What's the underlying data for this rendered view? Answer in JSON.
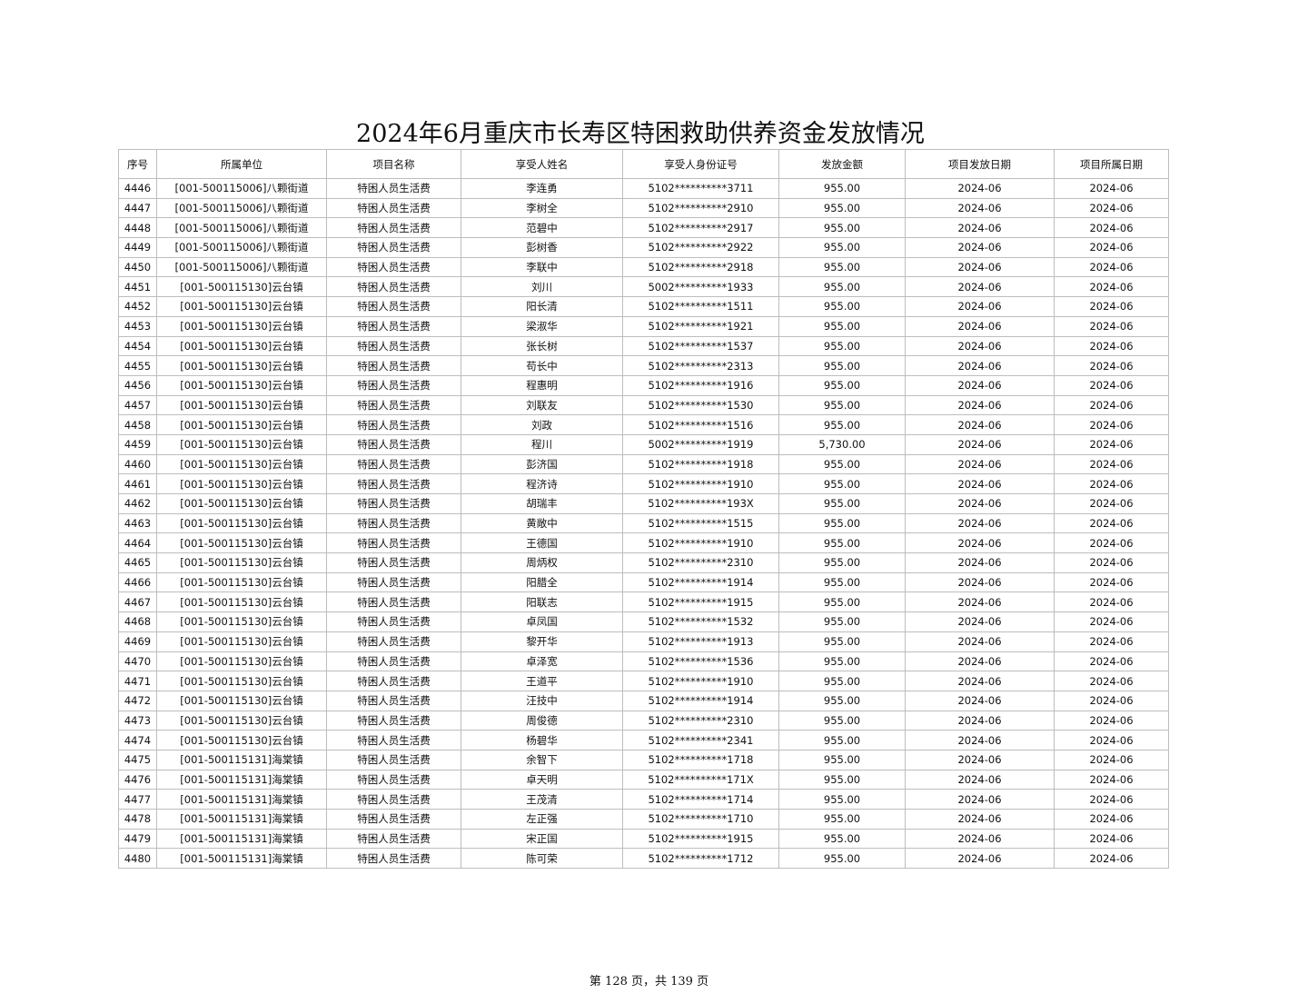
{
  "title": "2024年6月重庆市长寿区特困救助供养资金发放情况",
  "columns": [
    "序号",
    "所属单位",
    "项目名称",
    "享受人姓名",
    "享受人身份证号",
    "发放金额",
    "项目发放日期",
    "项目所属日期"
  ],
  "rows": [
    [
      "4446",
      "[001-500115006]八颗街道",
      "特困人员生活费",
      "李连勇",
      "5102**********3711",
      "955.00",
      "2024-06",
      "2024-06"
    ],
    [
      "4447",
      "[001-500115006]八颗街道",
      "特困人员生活费",
      "李树全",
      "5102**********2910",
      "955.00",
      "2024-06",
      "2024-06"
    ],
    [
      "4448",
      "[001-500115006]八颗街道",
      "特困人员生活费",
      "范碧中",
      "5102**********2917",
      "955.00",
      "2024-06",
      "2024-06"
    ],
    [
      "4449",
      "[001-500115006]八颗街道",
      "特困人员生活费",
      "彭树香",
      "5102**********2922",
      "955.00",
      "2024-06",
      "2024-06"
    ],
    [
      "4450",
      "[001-500115006]八颗街道",
      "特困人员生活费",
      "李联中",
      "5102**********2918",
      "955.00",
      "2024-06",
      "2024-06"
    ],
    [
      "4451",
      "[001-500115130]云台镇",
      "特困人员生活费",
      "刘川",
      "5002**********1933",
      "955.00",
      "2024-06",
      "2024-06"
    ],
    [
      "4452",
      "[001-500115130]云台镇",
      "特困人员生活费",
      "阳长清",
      "5102**********1511",
      "955.00",
      "2024-06",
      "2024-06"
    ],
    [
      "4453",
      "[001-500115130]云台镇",
      "特困人员生活费",
      "梁淑华",
      "5102**********1921",
      "955.00",
      "2024-06",
      "2024-06"
    ],
    [
      "4454",
      "[001-500115130]云台镇",
      "特困人员生活费",
      "张长树",
      "5102**********1537",
      "955.00",
      "2024-06",
      "2024-06"
    ],
    [
      "4455",
      "[001-500115130]云台镇",
      "特困人员生活费",
      "苟长中",
      "5102**********2313",
      "955.00",
      "2024-06",
      "2024-06"
    ],
    [
      "4456",
      "[001-500115130]云台镇",
      "特困人员生活费",
      "程惠明",
      "5102**********1916",
      "955.00",
      "2024-06",
      "2024-06"
    ],
    [
      "4457",
      "[001-500115130]云台镇",
      "特困人员生活费",
      "刘联友",
      "5102**********1530",
      "955.00",
      "2024-06",
      "2024-06"
    ],
    [
      "4458",
      "[001-500115130]云台镇",
      "特困人员生活费",
      "刘政",
      "5102**********1516",
      "955.00",
      "2024-06",
      "2024-06"
    ],
    [
      "4459",
      "[001-500115130]云台镇",
      "特困人员生活费",
      "程川",
      "5002**********1919",
      "5,730.00",
      "2024-06",
      "2024-06"
    ],
    [
      "4460",
      "[001-500115130]云台镇",
      "特困人员生活费",
      "彭济国",
      "5102**********1918",
      "955.00",
      "2024-06",
      "2024-06"
    ],
    [
      "4461",
      "[001-500115130]云台镇",
      "特困人员生活费",
      "程济诗",
      "5102**********1910",
      "955.00",
      "2024-06",
      "2024-06"
    ],
    [
      "4462",
      "[001-500115130]云台镇",
      "特困人员生活费",
      "胡瑞丰",
      "5102**********193X",
      "955.00",
      "2024-06",
      "2024-06"
    ],
    [
      "4463",
      "[001-500115130]云台镇",
      "特困人员生活费",
      "黄敞中",
      "5102**********1515",
      "955.00",
      "2024-06",
      "2024-06"
    ],
    [
      "4464",
      "[001-500115130]云台镇",
      "特困人员生活费",
      "王德国",
      "5102**********1910",
      "955.00",
      "2024-06",
      "2024-06"
    ],
    [
      "4465",
      "[001-500115130]云台镇",
      "特困人员生活费",
      "周炳权",
      "5102**********2310",
      "955.00",
      "2024-06",
      "2024-06"
    ],
    [
      "4466",
      "[001-500115130]云台镇",
      "特困人员生活费",
      "阳腊全",
      "5102**********1914",
      "955.00",
      "2024-06",
      "2024-06"
    ],
    [
      "4467",
      "[001-500115130]云台镇",
      "特困人员生活费",
      "阳联志",
      "5102**********1915",
      "955.00",
      "2024-06",
      "2024-06"
    ],
    [
      "4468",
      "[001-500115130]云台镇",
      "特困人员生活费",
      "卓凤国",
      "5102**********1532",
      "955.00",
      "2024-06",
      "2024-06"
    ],
    [
      "4469",
      "[001-500115130]云台镇",
      "特困人员生活费",
      "黎开华",
      "5102**********1913",
      "955.00",
      "2024-06",
      "2024-06"
    ],
    [
      "4470",
      "[001-500115130]云台镇",
      "特困人员生活费",
      "卓泽宽",
      "5102**********1536",
      "955.00",
      "2024-06",
      "2024-06"
    ],
    [
      "4471",
      "[001-500115130]云台镇",
      "特困人员生活费",
      "王道平",
      "5102**********1910",
      "955.00",
      "2024-06",
      "2024-06"
    ],
    [
      "4472",
      "[001-500115130]云台镇",
      "特困人员生活费",
      "汪技中",
      "5102**********1914",
      "955.00",
      "2024-06",
      "2024-06"
    ],
    [
      "4473",
      "[001-500115130]云台镇",
      "特困人员生活费",
      "周俊德",
      "5102**********2310",
      "955.00",
      "2024-06",
      "2024-06"
    ],
    [
      "4474",
      "[001-500115130]云台镇",
      "特困人员生活费",
      "杨碧华",
      "5102**********2341",
      "955.00",
      "2024-06",
      "2024-06"
    ],
    [
      "4475",
      "[001-500115131]海棠镇",
      "特困人员生活费",
      "余智下",
      "5102**********1718",
      "955.00",
      "2024-06",
      "2024-06"
    ],
    [
      "4476",
      "[001-500115131]海棠镇",
      "特困人员生活费",
      "卓天明",
      "5102**********171X",
      "955.00",
      "2024-06",
      "2024-06"
    ],
    [
      "4477",
      "[001-500115131]海棠镇",
      "特困人员生活费",
      "王茂清",
      "5102**********1714",
      "955.00",
      "2024-06",
      "2024-06"
    ],
    [
      "4478",
      "[001-500115131]海棠镇",
      "特困人员生活费",
      "左正强",
      "5102**********1710",
      "955.00",
      "2024-06",
      "2024-06"
    ],
    [
      "4479",
      "[001-500115131]海棠镇",
      "特困人员生活费",
      "宋正国",
      "5102**********1915",
      "955.00",
      "2024-06",
      "2024-06"
    ],
    [
      "4480",
      "[001-500115131]海棠镇",
      "特困人员生活费",
      "陈可荣",
      "5102**********1712",
      "955.00",
      "2024-06",
      "2024-06"
    ]
  ],
  "footer": "第 128 页，共 139 页"
}
